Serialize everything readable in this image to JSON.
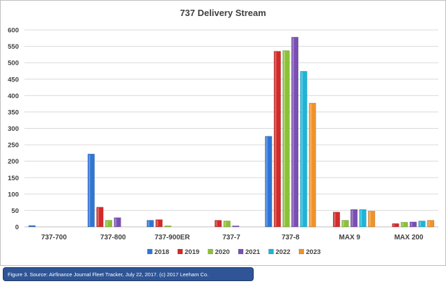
{
  "chart_data": {
    "type": "bar",
    "title": "737 Delivery Stream",
    "xlabel": "",
    "ylabel": "",
    "ylim": [
      0,
      600
    ],
    "yticks": [
      0,
      50,
      100,
      150,
      200,
      250,
      300,
      350,
      400,
      450,
      500,
      550,
      600
    ],
    "grid": true,
    "legend_position": "bottom",
    "categories": [
      "737-700",
      "737-800",
      "737-900ER",
      "737-7",
      "737-8",
      "MAX 9",
      "MAX 200"
    ],
    "series": [
      {
        "name": "2018",
        "color": "#2e75d6",
        "values": [
          4,
          222,
          20,
          0,
          276,
          0,
          0
        ]
      },
      {
        "name": "2019",
        "color": "#d42a2a",
        "values": [
          0,
          60,
          22,
          20,
          535,
          45,
          10
        ]
      },
      {
        "name": "2020",
        "color": "#8bc234",
        "values": [
          0,
          20,
          3,
          18,
          537,
          20,
          14
        ]
      },
      {
        "name": "2021",
        "color": "#7a4fb3",
        "values": [
          0,
          28,
          0,
          3,
          578,
          53,
          15
        ]
      },
      {
        "name": "2022",
        "color": "#1cb5d8",
        "values": [
          0,
          0,
          0,
          0,
          474,
          53,
          18
        ]
      },
      {
        "name": "2023",
        "color": "#f0932b",
        "values": [
          0,
          0,
          0,
          0,
          377,
          48,
          20
        ]
      }
    ]
  },
  "caption": "Figure 3. Source: Airfinance Journal Fleet Tracker, July 22, 2017. (c) 2017 Leeham Co."
}
